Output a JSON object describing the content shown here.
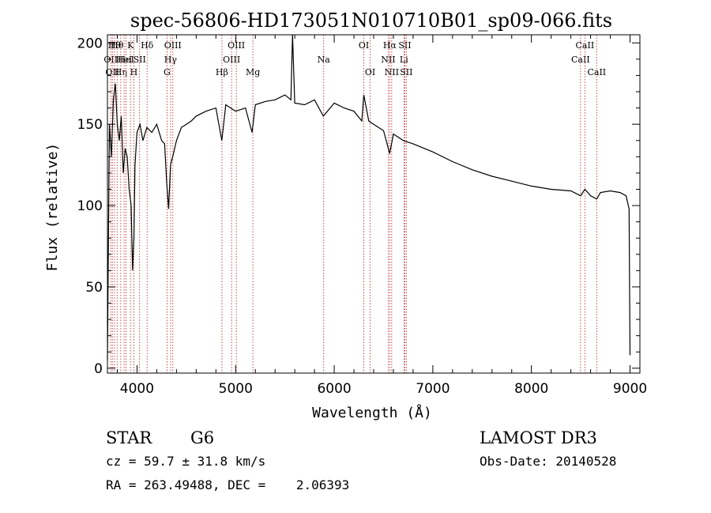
{
  "chart_data": {
    "type": "line",
    "title": "spec-56806-HD173051N010710B01_sp09-066.fits",
    "xlabel": "Wavelength (Å)",
    "ylabel": "Flux (relative)",
    "xlim": [
      3700,
      9100
    ],
    "ylim": [
      -3,
      205
    ],
    "xticks": [
      4000,
      5000,
      6000,
      7000,
      8000,
      9000
    ],
    "yticks": [
      0,
      50,
      100,
      150,
      200
    ],
    "series": [
      {
        "name": "spectrum",
        "x": [
          3700,
          3720,
          3740,
          3760,
          3780,
          3800,
          3820,
          3840,
          3860,
          3880,
          3900,
          3920,
          3940,
          3955,
          3968,
          3980,
          4000,
          4030,
          4060,
          4100,
          4150,
          4200,
          4250,
          4280,
          4300,
          4320,
          4340,
          4370,
          4400,
          4450,
          4500,
          4550,
          4600,
          4700,
          4800,
          4860,
          4900,
          5000,
          5100,
          5167,
          5200,
          5300,
          5400,
          5500,
          5560,
          5577,
          5600,
          5700,
          5800,
          5890,
          6000,
          6100,
          6200,
          6280,
          6300,
          6350,
          6400,
          6500,
          6563,
          6600,
          6700,
          6800,
          7000,
          7200,
          7400,
          7600,
          7800,
          8000,
          8200,
          8400,
          8498,
          8542,
          8600,
          8662,
          8700,
          8800,
          8900,
          8960,
          8990,
          9000
        ],
        "y": [
          5,
          150,
          130,
          165,
          175,
          150,
          140,
          155,
          120,
          135,
          130,
          110,
          100,
          60,
          80,
          125,
          145,
          150,
          140,
          148,
          145,
          150,
          140,
          138,
          115,
          98,
          125,
          132,
          140,
          148,
          150,
          152,
          155,
          158,
          160,
          140,
          162,
          158,
          160,
          145,
          162,
          164,
          165,
          168,
          165,
          205,
          163,
          162,
          165,
          155,
          163,
          160,
          158,
          152,
          168,
          152,
          150,
          146,
          132,
          144,
          140,
          138,
          133,
          127,
          122,
          118,
          115,
          112,
          110,
          109,
          106,
          110,
          106,
          104,
          108,
          109,
          108,
          106,
          98,
          8
        ]
      }
    ],
    "lines": [
      {
        "wl": 3734,
        "label": "OII",
        "row": 2
      },
      {
        "wl": 3750,
        "label": "OII",
        "row": 3
      },
      {
        "wl": 3771,
        "label": "Hθ",
        "row": 1
      },
      {
        "wl": 3798,
        "label": "Hθ",
        "row": 1
      },
      {
        "wl": 3835,
        "label": "Hη",
        "row": 3
      },
      {
        "wl": 3869,
        "label": "HeI",
        "row": 2
      },
      {
        "wl": 3889,
        "label": "HeI",
        "row": 2
      },
      {
        "wl": 3934,
        "label": "K",
        "row": 1
      },
      {
        "wl": 3968,
        "label": "H",
        "row": 3
      },
      {
        "wl": 4026,
        "label": "SII",
        "row": 2
      },
      {
        "wl": 4102,
        "label": "Hδ",
        "row": 1
      },
      {
        "wl": 4304,
        "label": "G",
        "row": 3
      },
      {
        "wl": 4340,
        "label": "Hγ",
        "row": 2
      },
      {
        "wl": 4363,
        "label": "OIII",
        "row": 1
      },
      {
        "wl": 4861,
        "label": "Hβ",
        "row": 3
      },
      {
        "wl": 4959,
        "label": "OIII",
        "row": 2
      },
      {
        "wl": 5007,
        "label": "OIII",
        "row": 1
      },
      {
        "wl": 5175,
        "label": "Mg",
        "row": 3
      },
      {
        "wl": 5893,
        "label": "Na",
        "row": 2
      },
      {
        "wl": 6300,
        "label": "OI",
        "row": 1
      },
      {
        "wl": 6364,
        "label": "OI",
        "row": 3
      },
      {
        "wl": 6548,
        "label": "NII",
        "row": 2
      },
      {
        "wl": 6563,
        "label": "Hα",
        "row": 1
      },
      {
        "wl": 6583,
        "label": "NII",
        "row": 3
      },
      {
        "wl": 6707,
        "label": "Li",
        "row": 2
      },
      {
        "wl": 6716,
        "label": "SII",
        "row": 1
      },
      {
        "wl": 6731,
        "label": "SII",
        "row": 3
      },
      {
        "wl": 8498,
        "label": "CaII",
        "row": 2
      },
      {
        "wl": 8542,
        "label": "CaII",
        "row": 1
      },
      {
        "wl": 8662,
        "label": "CaII",
        "row": 3
      }
    ]
  },
  "info": {
    "object_class": "STAR",
    "subclass": "G6",
    "survey": "LAMOST DR3",
    "cz": "cz = 59.7 ± 31.8 km/s",
    "obs_date": "Obs-Date: 20140528",
    "coords": "RA = 263.49488, DEC =    2.06393"
  }
}
